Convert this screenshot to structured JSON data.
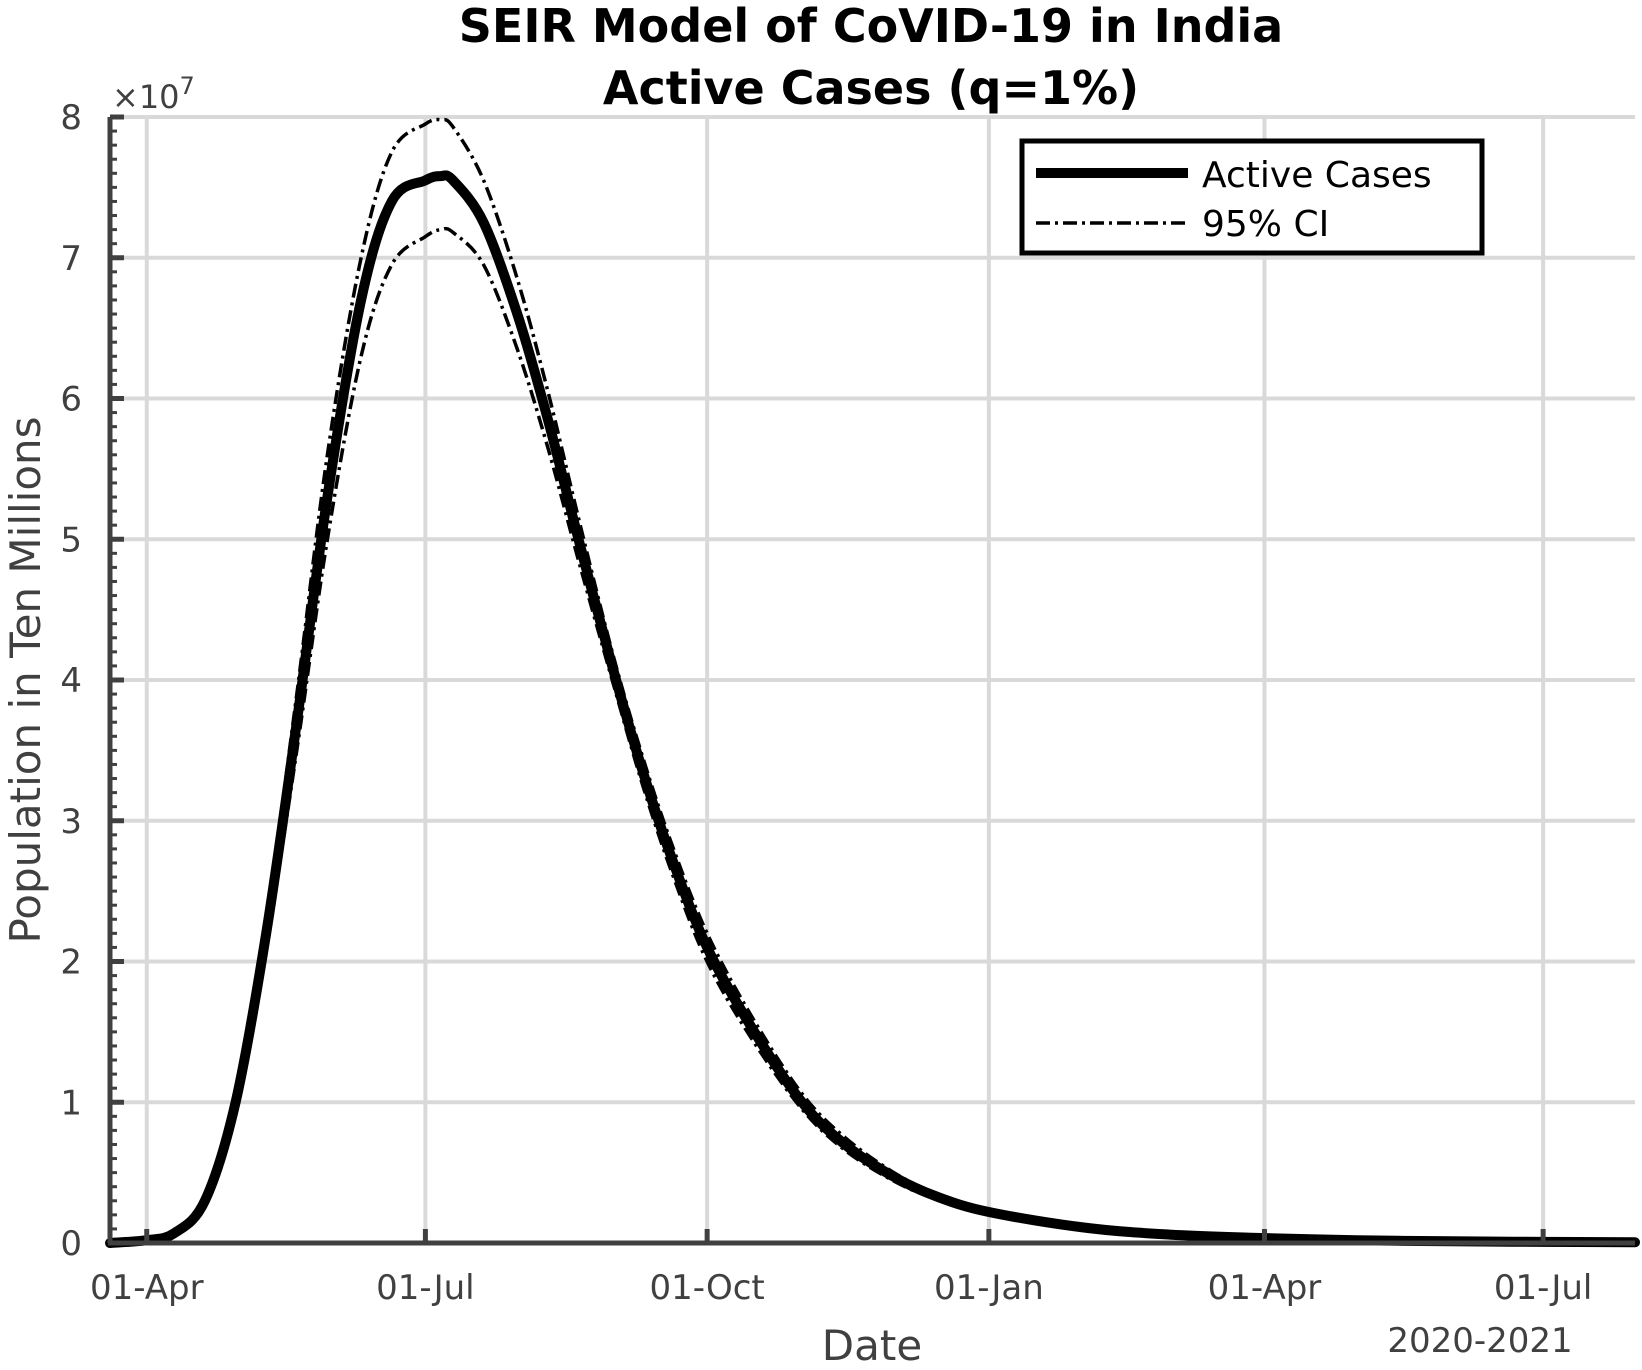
{
  "chart_data": {
    "type": "line",
    "title": "SEIR Model of CoVID-19 in India",
    "subtitle": "Active Cases (q=1%)",
    "xlabel": "Date",
    "ylabel": "Population in Ten Millions",
    "y_exponent_label": "×10",
    "y_exponent_power": "7",
    "x_secondary_label": "2020-2021",
    "grid": true,
    "legend_position": "top-right",
    "xlim": [
      "2020-03-20",
      "2021-07-31"
    ],
    "ylim": [
      0,
      8
    ],
    "x_ticks": [
      {
        "date": "2020-04-01",
        "label": "01-Apr"
      },
      {
        "date": "2020-07-01",
        "label": "01-Jul"
      },
      {
        "date": "2020-10-01",
        "label": "01-Oct"
      },
      {
        "date": "2021-01-01",
        "label": "01-Jan"
      },
      {
        "date": "2021-04-01",
        "label": "01-Apr"
      },
      {
        "date": "2021-07-01",
        "label": "01-Jul"
      }
    ],
    "y_ticks": [
      0,
      1,
      2,
      3,
      4,
      5,
      6,
      7,
      8
    ],
    "legend": [
      {
        "label": "Active Cases",
        "style": "solid"
      },
      {
        "label": "95% CI",
        "style": "dashdot"
      }
    ],
    "series": [
      {
        "name": "Active Cases",
        "style": "solid",
        "x": [
          "2020-03-20",
          "2020-04-01",
          "2020-04-10",
          "2020-04-20",
          "2020-04-30",
          "2020-05-10",
          "2020-05-20",
          "2020-05-30",
          "2020-06-10",
          "2020-06-20",
          "2020-07-01",
          "2020-07-06",
          "2020-07-10",
          "2020-07-20",
          "2020-07-31",
          "2020-08-10",
          "2020-08-20",
          "2020-08-31",
          "2020-09-10",
          "2020-09-20",
          "2020-10-01",
          "2020-10-15",
          "2020-11-01",
          "2020-11-15",
          "2020-12-01",
          "2020-12-15",
          "2021-01-01",
          "2021-02-01",
          "2021-03-01",
          "2021-04-01",
          "2021-05-01",
          "2021-06-01",
          "2021-07-01",
          "2021-07-31"
        ],
        "y": [
          0.0,
          0.02,
          0.07,
          0.3,
          1.0,
          2.2,
          3.7,
          5.3,
          6.7,
          7.4,
          7.55,
          7.58,
          7.55,
          7.25,
          6.6,
          5.85,
          5.0,
          4.1,
          3.35,
          2.7,
          2.1,
          1.55,
          1.0,
          0.7,
          0.47,
          0.33,
          0.22,
          0.11,
          0.06,
          0.035,
          0.02,
          0.012,
          0.008,
          0.005
        ]
      },
      {
        "name": "95% CI upper",
        "style": "dashdot",
        "x": [
          "2020-03-20",
          "2020-04-01",
          "2020-04-10",
          "2020-04-20",
          "2020-04-30",
          "2020-05-10",
          "2020-05-20",
          "2020-05-30",
          "2020-06-10",
          "2020-06-20",
          "2020-07-01",
          "2020-07-06",
          "2020-07-10",
          "2020-07-20",
          "2020-07-31",
          "2020-08-10",
          "2020-08-20",
          "2020-08-31",
          "2020-09-10",
          "2020-09-20",
          "2020-10-01",
          "2020-10-15",
          "2020-11-01",
          "2020-11-15",
          "2020-12-01",
          "2020-12-15",
          "2021-01-01",
          "2021-02-01",
          "2021-03-01",
          "2021-04-01",
          "2021-05-01",
          "2021-06-01",
          "2021-07-01",
          "2021-07-31"
        ],
        "y": [
          0.0,
          0.02,
          0.08,
          0.33,
          1.05,
          2.3,
          3.9,
          5.6,
          7.0,
          7.75,
          7.95,
          7.98,
          7.93,
          7.55,
          6.85,
          6.05,
          5.15,
          4.2,
          3.45,
          2.8,
          2.2,
          1.63,
          1.06,
          0.75,
          0.5,
          0.35,
          0.23,
          0.12,
          0.065,
          0.038,
          0.022,
          0.013,
          0.009,
          0.006
        ]
      },
      {
        "name": "95% CI lower",
        "style": "dashdot",
        "x": [
          "2020-03-20",
          "2020-04-01",
          "2020-04-10",
          "2020-04-20",
          "2020-04-30",
          "2020-05-10",
          "2020-05-20",
          "2020-05-30",
          "2020-06-10",
          "2020-06-20",
          "2020-07-01",
          "2020-07-06",
          "2020-07-10",
          "2020-07-20",
          "2020-07-31",
          "2020-08-10",
          "2020-08-20",
          "2020-08-31",
          "2020-09-10",
          "2020-09-20",
          "2020-10-01",
          "2020-10-15",
          "2020-11-01",
          "2020-11-15",
          "2020-12-01",
          "2020-12-15",
          "2021-01-01",
          "2021-02-01",
          "2021-03-01",
          "2021-04-01",
          "2021-05-01",
          "2021-06-01",
          "2021-07-01",
          "2021-07-31"
        ],
        "y": [
          0.0,
          0.02,
          0.07,
          0.28,
          0.95,
          2.1,
          3.5,
          5.0,
          6.3,
          6.95,
          7.15,
          7.2,
          7.18,
          6.95,
          6.35,
          5.65,
          4.85,
          4.0,
          3.25,
          2.6,
          2.0,
          1.47,
          0.95,
          0.66,
          0.44,
          0.31,
          0.21,
          0.1,
          0.055,
          0.032,
          0.018,
          0.011,
          0.007,
          0.004
        ]
      }
    ]
  }
}
